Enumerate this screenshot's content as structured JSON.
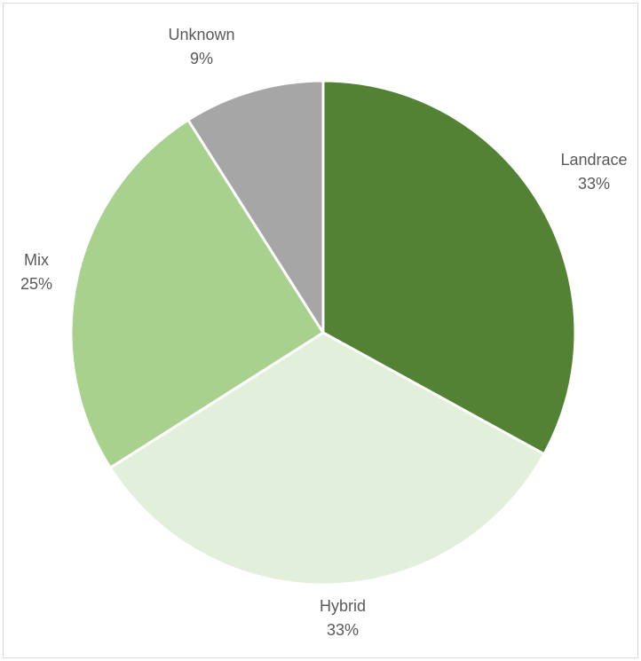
{
  "chart_data": {
    "type": "pie",
    "slices": [
      {
        "name": "Landrace",
        "value": 33,
        "label": "33%",
        "color": "#548235"
      },
      {
        "name": "Hybrid",
        "value": 33,
        "label": "33%",
        "color": "#e2efda"
      },
      {
        "name": "Mix",
        "value": 25,
        "label": "25%",
        "color": "#a9d18e"
      },
      {
        "name": "Unknown",
        "value": 9,
        "label": "9%",
        "color": "#a6a6a6"
      }
    ],
    "start_angle": "12 o'clock",
    "direction": "clockwise",
    "legend": "none",
    "data_labels": "outside, category name and percentage"
  }
}
